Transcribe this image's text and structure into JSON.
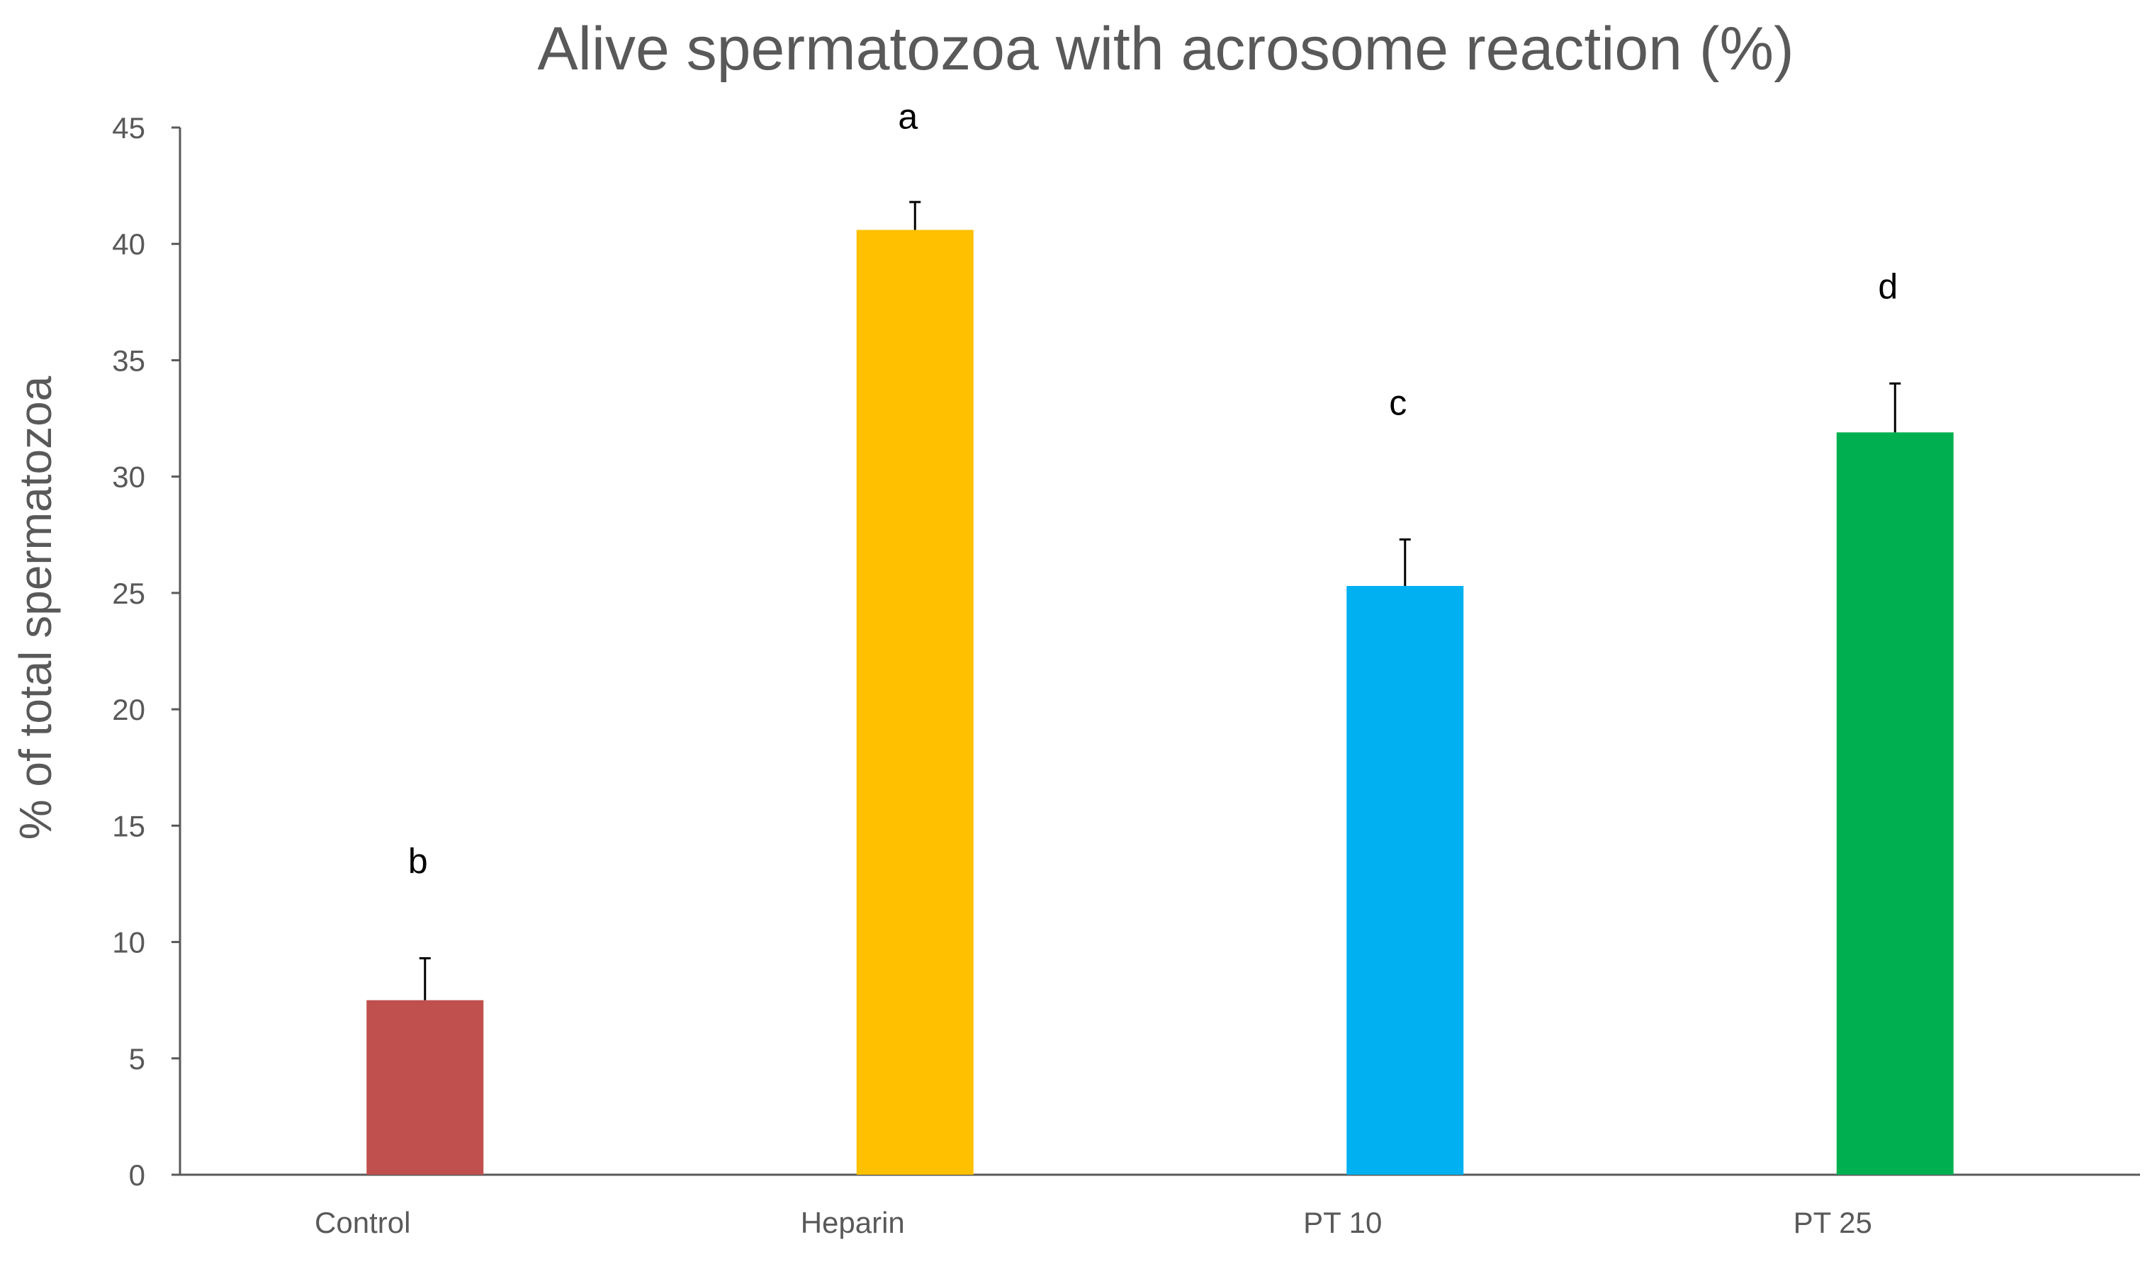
{
  "chart_data": {
    "type": "bar",
    "title": "Alive spermatozoa with acrosome reaction (%)",
    "xlabel": "",
    "ylabel": "% of total spermatozoa",
    "ylim": [
      0,
      45
    ],
    "yticks": [
      0,
      5,
      10,
      15,
      20,
      25,
      30,
      35,
      40,
      45
    ],
    "categories": [
      "Control",
      "Heparin",
      "PT 10",
      "PT 25"
    ],
    "values": [
      7.5,
      40.6,
      25.3,
      31.9
    ],
    "errors": [
      1.8,
      1.2,
      2.0,
      2.1
    ],
    "significance": [
      "b",
      "a",
      "c",
      "d"
    ],
    "significance_y": [
      13.5,
      45.5,
      33.2,
      38.2
    ],
    "colors": [
      "#C0504D",
      "#FFC000",
      "#00B0F0",
      "#00B050"
    ],
    "axis_color": "#595959",
    "grid": false
  }
}
